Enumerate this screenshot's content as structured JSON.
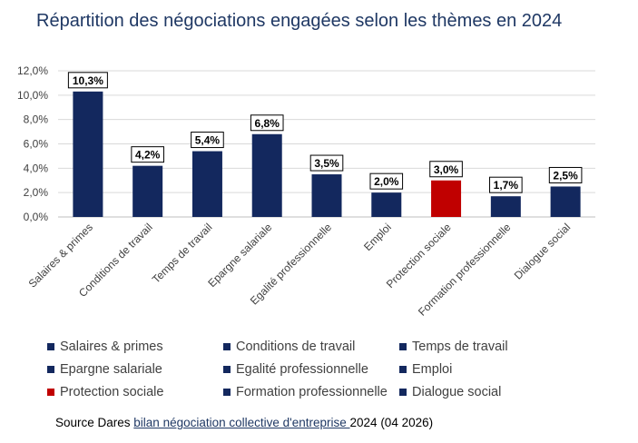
{
  "colors": {
    "title": "#1f3864",
    "bar_default": "#13285e",
    "bar_highlight": "#c00000",
    "grid": "#d9d9d9",
    "axis_text": "#404040"
  },
  "chart_data": {
    "type": "bar",
    "title": "Répartition des négociations engagées selon les thèmes en 2024",
    "categories": [
      "Salaires & primes",
      "Conditions de travail",
      "Temps de travail",
      "Epargne salariale",
      "Egalité professionnelle",
      "Emploi",
      "Protection sociale",
      "Formation professionnelle",
      "Dialogue social"
    ],
    "values": [
      10.3,
      4.2,
      5.4,
      6.8,
      3.5,
      2.0,
      3.0,
      1.7,
      2.5
    ],
    "data_labels": [
      "10,3%",
      "4,2%",
      "5,4%",
      "6,8%",
      "3,5%",
      "2,0%",
      "3,0%",
      "1,7%",
      "2,5%"
    ],
    "bar_colors": [
      "#13285e",
      "#13285e",
      "#13285e",
      "#13285e",
      "#13285e",
      "#13285e",
      "#c00000",
      "#13285e",
      "#13285e"
    ],
    "ylim": [
      0,
      12
    ],
    "yticks": [
      "0,0%",
      "2,0%",
      "4,0%",
      "6,0%",
      "8,0%",
      "10,0%",
      "12,0%"
    ],
    "xlabel": "",
    "ylabel": "",
    "grid": true,
    "legend": "bottom"
  },
  "legend": [
    {
      "label": "Salaires & primes",
      "color": "#13285e"
    },
    {
      "label": "Conditions de travail",
      "color": "#13285e"
    },
    {
      "label": "Temps de travail",
      "color": "#13285e"
    },
    {
      "label": "Epargne salariale",
      "color": "#13285e"
    },
    {
      "label": "Egalité professionnelle",
      "color": "#13285e"
    },
    {
      "label": "Emploi",
      "color": "#13285e"
    },
    {
      "label": "Protection sociale",
      "color": "#c00000"
    },
    {
      "label": "Formation professionnelle",
      "color": "#13285e"
    },
    {
      "label": "Dialogue social",
      "color": "#13285e"
    }
  ],
  "source": {
    "prefix": "Source Dares ",
    "link_text": "bilan négociation collective d'entreprise ",
    "suffix": "2024 (04 2026)"
  }
}
